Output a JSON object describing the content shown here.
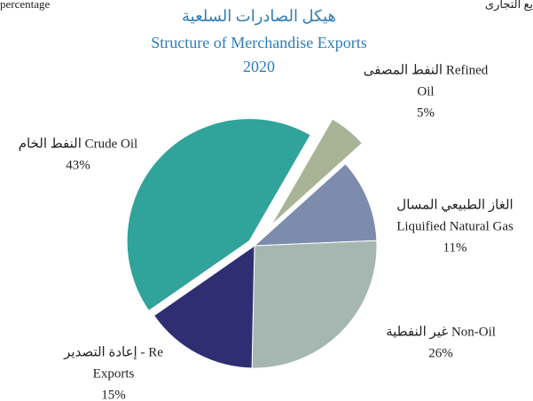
{
  "chart_data": {
    "type": "pie",
    "corner_texts": [
      "percentage",
      "يع التجارى"
    ],
    "title": [
      "هيكل الصادرات السلعية",
      "Structure of Merchandise Exports",
      "2020"
    ],
    "categories": [
      [
        "النفط المصفى  Refined",
        "Oil"
      ],
      [
        "الغاز الطبيعي المسال",
        "Liquified Natural Gas"
      ],
      [
        "غير النفطية  Non-Oil"
      ],
      [
        "إعادة التصدير  - Re",
        "Exports"
      ],
      [
        "النفط الخام  Crude Oil"
      ]
    ],
    "values": [
      5,
      11,
      26,
      15,
      43
    ],
    "value_labels": [
      "5%",
      "11%",
      "26%",
      "15%",
      "43%"
    ],
    "colors": [
      "#a9b497",
      "#7d8cad",
      "#a6b6b1",
      "#2f2e72",
      "#30a39b"
    ]
  }
}
